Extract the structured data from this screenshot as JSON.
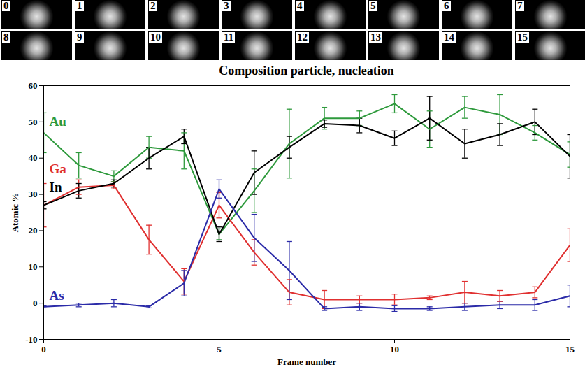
{
  "frames": [
    0,
    1,
    2,
    3,
    4,
    5,
    6,
    7,
    8,
    9,
    10,
    11,
    12,
    13,
    14,
    15
  ],
  "chart_data": {
    "type": "line",
    "title": "Composition particle, nucleation",
    "x_label": "Frame number",
    "y_label": "Atomic %",
    "x": [
      0,
      1,
      2,
      3,
      4,
      5,
      6,
      7,
      8,
      9,
      10,
      11,
      12,
      13,
      14,
      15
    ],
    "xlim": [
      0,
      15
    ],
    "xticks": [
      0,
      5,
      10,
      15
    ],
    "ylim": [
      -10,
      60
    ],
    "yticks": [
      -10,
      0,
      10,
      20,
      30,
      40,
      50,
      60
    ],
    "grid": false,
    "series": [
      {
        "name": "Au",
        "color": "#2e9a3c",
        "values": [
          47,
          38,
          35,
          43,
          42,
          19,
          31,
          44,
          51,
          51,
          55,
          48,
          54,
          52,
          47,
          41
        ],
        "errors": [
          5.5,
          3.5,
          1.5,
          3,
          5,
          1.5,
          6,
          9.5,
          3,
          2,
          2.5,
          5,
          3,
          5.5,
          2,
          3.5
        ]
      },
      {
        "name": "Ga",
        "color": "#e03030",
        "values": [
          27,
          32,
          32.5,
          17.5,
          6,
          27,
          14,
          3,
          1,
          1,
          1,
          1.5,
          3,
          2,
          3,
          16
        ],
        "errors": [
          6,
          2,
          1,
          4,
          3.5,
          3.5,
          3.5,
          3.5,
          2.5,
          1,
          1.5,
          0.5,
          3,
          1.5,
          1.5,
          4.5
        ]
      },
      {
        "name": "In",
        "color": "#000000",
        "values": [
          27,
          31,
          33,
          40,
          46,
          19,
          36,
          43,
          49.5,
          49,
          45.5,
          51,
          44,
          46.5,
          50,
          40.5
        ],
        "errors": [
          1,
          2,
          1,
          3,
          2,
          2,
          6,
          3,
          1,
          2,
          2,
          6,
          4,
          3,
          3.5,
          6
        ]
      },
      {
        "name": "As",
        "color": "#2b2ba8",
        "values": [
          -1,
          -0.5,
          0,
          -1,
          5.5,
          31.5,
          18,
          9,
          -1.5,
          -1,
          -1.5,
          -1.5,
          -1,
          -0.5,
          -0.5,
          2
        ],
        "errors": [
          0.3,
          0.5,
          1,
          0.3,
          3.5,
          2.5,
          6.5,
          8,
          0.5,
          1,
          0.8,
          0.5,
          1,
          1,
          1.5,
          3
        ]
      }
    ]
  }
}
